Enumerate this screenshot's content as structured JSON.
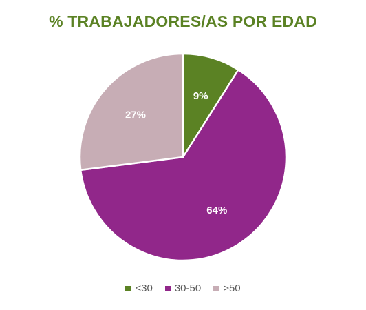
{
  "chart_data": {
    "type": "pie",
    "title": "% TRABAJADORES/AS POR EDAD",
    "legend_position": "bottom",
    "slices": [
      {
        "label": "<30",
        "value": 9,
        "display": "9%",
        "color": "#5b8224"
      },
      {
        "label": "30-50",
        "value": 64,
        "display": "64%",
        "color": "#91278a"
      },
      {
        "label": ">50",
        "value": 27,
        "display": "27%",
        "color": "#c7adb5"
      }
    ]
  },
  "colors": {
    "title": "#5b8224",
    "data_label": "#ffffff",
    "legend_text": "#595959"
  }
}
